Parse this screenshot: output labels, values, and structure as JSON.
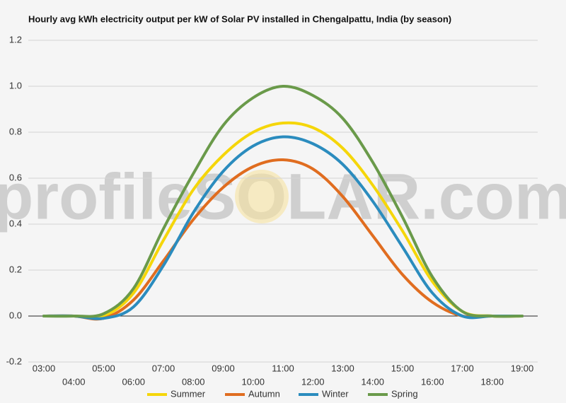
{
  "chart_data": {
    "type": "line",
    "title": "Hourly avg kWh electricity output per kW of Solar PV installed in Chengalpattu, India (by season)",
    "watermark": "profileSOLAR.com",
    "categories": [
      "03:00",
      "04:00",
      "05:00",
      "06:00",
      "07:00",
      "08:00",
      "09:00",
      "10:00",
      "11:00",
      "12:00",
      "13:00",
      "14:00",
      "15:00",
      "16:00",
      "17:00",
      "18:00",
      "19:00"
    ],
    "series": [
      {
        "name": "Summer",
        "color": "#f5d60a",
        "values": [
          0,
          0,
          0,
          0.1,
          0.33,
          0.55,
          0.7,
          0.8,
          0.84,
          0.82,
          0.73,
          0.57,
          0.37,
          0.15,
          0.02,
          0,
          0
        ]
      },
      {
        "name": "Autumn",
        "color": "#e06d20",
        "values": [
          0,
          0,
          -0.01,
          0.07,
          0.24,
          0.42,
          0.56,
          0.65,
          0.68,
          0.64,
          0.52,
          0.35,
          0.18,
          0.06,
          0,
          0,
          0
        ]
      },
      {
        "name": "Winter",
        "color": "#2b8cbe",
        "values": [
          0,
          0,
          -0.01,
          0.04,
          0.22,
          0.45,
          0.63,
          0.74,
          0.78,
          0.75,
          0.66,
          0.5,
          0.3,
          0.1,
          0,
          0,
          0
        ]
      },
      {
        "name": "Spring",
        "color": "#6a9a4a",
        "values": [
          0,
          0,
          0.01,
          0.12,
          0.38,
          0.62,
          0.83,
          0.95,
          1.0,
          0.96,
          0.86,
          0.67,
          0.43,
          0.17,
          0.02,
          0,
          0
        ]
      }
    ],
    "ylim": [
      -0.2,
      1.2
    ],
    "yticks": [
      {
        "value": -0.2,
        "label": "-0.2"
      },
      {
        "value": 0,
        "label": "0.0"
      },
      {
        "value": 0.2,
        "label": "0.2"
      },
      {
        "value": 0.4,
        "label": "0.4"
      },
      {
        "value": 0.6,
        "label": "0.6"
      },
      {
        "value": 0.8,
        "label": "0.8"
      },
      {
        "value": 1,
        "label": "1.0"
      },
      {
        "value": 1.2,
        "label": "1.2"
      }
    ],
    "grid": true,
    "legend": "bottom"
  }
}
